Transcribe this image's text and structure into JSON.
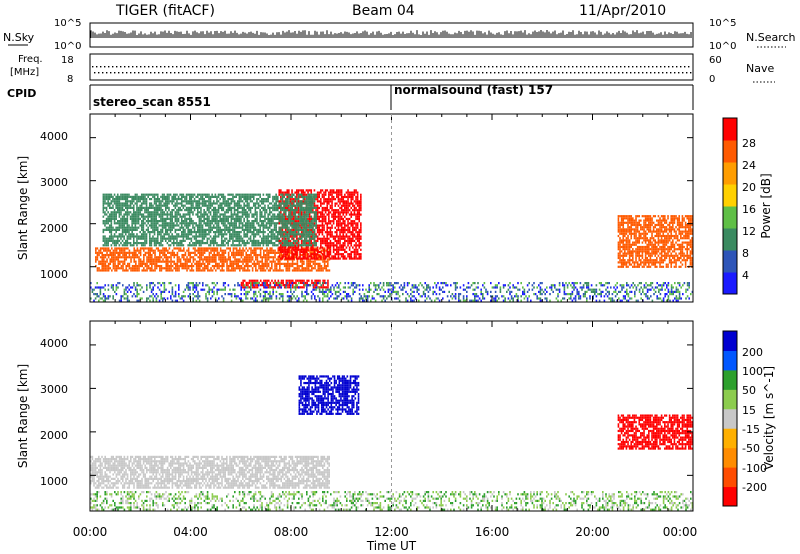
{
  "header": {
    "radar": "TIGER (fitACF)",
    "beam": "Beam 04",
    "date": "11/Apr/2010"
  },
  "noise_panel": {
    "left_label": "N.Sky",
    "right_label": "N.Search",
    "left_ticks": [
      "10^5",
      "10^0"
    ],
    "right_ticks": [
      "10^5",
      "10^0"
    ]
  },
  "freq_panel": {
    "left_label_line1": "Freq.",
    "left_label_line2": "[MHz]",
    "right_label": "Nave",
    "left_ticks": [
      "18",
      "8"
    ],
    "right_ticks": [
      "60",
      "0"
    ]
  },
  "cpid_panel": {
    "label": "CPID",
    "programs": [
      {
        "name": "stereo_scan 8551",
        "start_hour": 0
      },
      {
        "name": "normalsound (fast) 157",
        "start_hour": 12
      }
    ]
  },
  "colors": {
    "gray_scatter": "#c8c8c8",
    "bar_power": [
      "#1a1aff",
      "#2e55b8",
      "#3a8a60",
      "#5fbf46",
      "#ffd000",
      "#ff9d00",
      "#ff5a00",
      "#ff0000"
    ],
    "bar_velocity": [
      "#ff0000",
      "#ff4c00",
      "#ff8c00",
      "#ffb000",
      "#c8c8c8",
      "#8ccc4e",
      "#2da02d",
      "#0057ff",
      "#0000d0"
    ]
  },
  "chart_data": [
    {
      "type": "heatmap",
      "title": "",
      "ylabel": "Slant Range [km]",
      "y_ticks": [
        "4000",
        "3000",
        "2000",
        "1000"
      ],
      "ylim": [
        180,
        4550
      ],
      "x_range_hours": [
        0,
        24
      ],
      "colorbar": {
        "label": "Power [dB]",
        "ticks": [
          "28",
          "24",
          "20",
          "16",
          "12",
          "8",
          "4"
        ],
        "range": [
          0,
          32
        ]
      },
      "features": [
        {
          "start_hour": 0.2,
          "end_hour": 9.5,
          "min_range_km": 900,
          "max_range_km": 1450,
          "power_db": 24
        },
        {
          "start_hour": 7.5,
          "end_hour": 10.8,
          "min_range_km": 1200,
          "max_range_km": 2800,
          "power_db": 28
        },
        {
          "start_hour": 6.0,
          "end_hour": 9.5,
          "min_range_km": 500,
          "max_range_km": 700,
          "power_db": 28
        },
        {
          "start_hour": 0.5,
          "end_hour": 9.0,
          "min_range_km": 1500,
          "max_range_km": 2700,
          "power_db": 10
        },
        {
          "start_hour": 21.0,
          "end_hour": 24.0,
          "min_range_km": 1000,
          "max_range_km": 2200,
          "power_db": 24
        }
      ]
    },
    {
      "type": "heatmap",
      "title": "",
      "ylabel": "Slant Range [km]",
      "xlabel": "Time UT",
      "y_ticks": [
        "4000",
        "3000",
        "2000",
        "1000"
      ],
      "x_ticks": [
        "00:00",
        "04:00",
        "08:00",
        "12:00",
        "16:00",
        "20:00",
        "00:00"
      ],
      "ylim": [
        180,
        4550
      ],
      "x_range_hours": [
        0,
        24
      ],
      "colorbar": {
        "label": "Velocity [m s^-1]",
        "ticks": [
          "200",
          "100",
          "50",
          "15",
          "-15",
          "-50",
          "-100",
          "-200"
        ],
        "range": [
          -250,
          250
        ]
      },
      "features": [
        {
          "start_hour": 0.0,
          "end_hour": 9.5,
          "min_range_km": 700,
          "max_range_km": 1450,
          "velocity_ms": 0
        },
        {
          "start_hour": 8.3,
          "end_hour": 10.7,
          "min_range_km": 2400,
          "max_range_km": 3300,
          "velocity_ms": 200
        },
        {
          "start_hour": 21.0,
          "end_hour": 24.0,
          "min_range_km": 1600,
          "max_range_km": 2400,
          "velocity_ms": -200
        }
      ]
    }
  ]
}
